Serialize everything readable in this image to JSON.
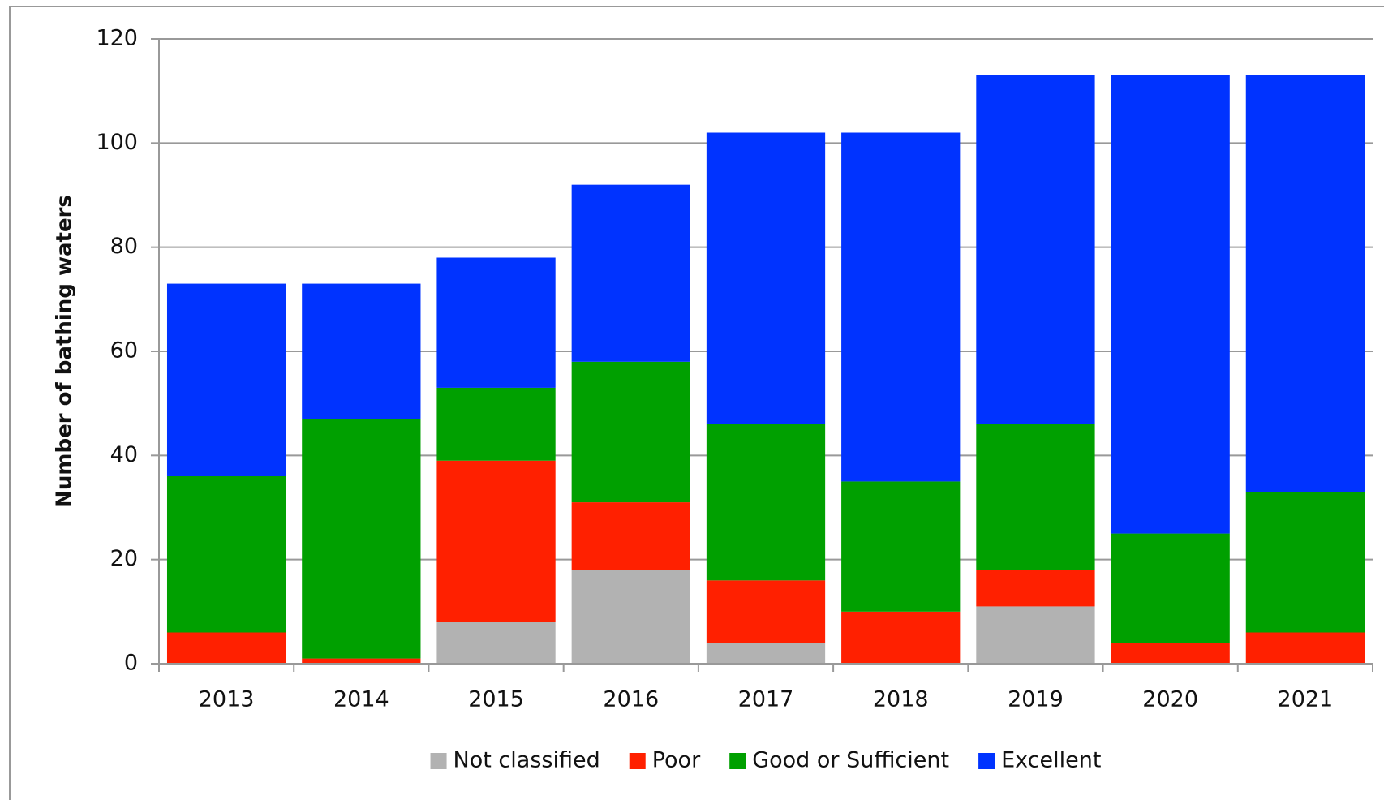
{
  "chart_data": {
    "type": "stacked_bar",
    "y_label": "Number of bathing waters",
    "categories": [
      "2013",
      "2014",
      "2015",
      "2016",
      "2017",
      "2018",
      "2019",
      "2020",
      "2021"
    ],
    "series": [
      {
        "name": "Not classified",
        "color": "#b2b2b2",
        "values": [
          0,
          0,
          8,
          18,
          4,
          0,
          11,
          0,
          0
        ]
      },
      {
        "name": "Poor",
        "color": "#ff2000",
        "values": [
          6,
          1,
          31,
          13,
          12,
          10,
          7,
          4,
          6
        ]
      },
      {
        "name": "Good or Sufficient",
        "color": "#00a000",
        "values": [
          30,
          46,
          14,
          27,
          30,
          25,
          28,
          21,
          27
        ]
      },
      {
        "name": "Excellent",
        "color": "#0033ff",
        "values": [
          37,
          26,
          25,
          34,
          56,
          67,
          67,
          88,
          80
        ]
      }
    ],
    "ylim": [
      0,
      120
    ],
    "yticks": [
      0,
      20,
      40,
      60,
      80,
      100,
      120
    ],
    "grid": true,
    "legend": "bottom"
  }
}
